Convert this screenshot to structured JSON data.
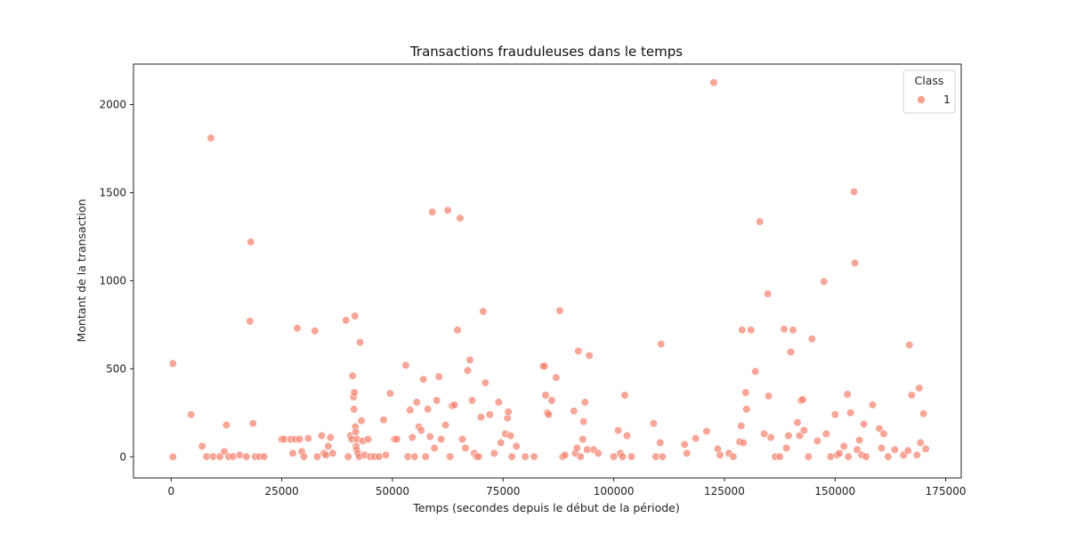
{
  "chart_data": {
    "type": "scatter",
    "title": "Transactions frauduleuses dans le temps",
    "xlabel": "Temps (secondes depuis le début de la période)",
    "ylabel": "Montant de la transaction",
    "xlim": [
      -8500,
      178500
    ],
    "ylim": [
      -120,
      2230
    ],
    "x_ticks": [
      0,
      25000,
      50000,
      75000,
      100000,
      125000,
      150000,
      175000
    ],
    "y_ticks": [
      0,
      500,
      1000,
      1500,
      2000
    ],
    "grid": false,
    "legend": {
      "title": "Class",
      "placement": "top-right",
      "entries": [
        "1"
      ]
    },
    "series": [
      {
        "name": "1",
        "color": "#f4836f",
        "points": [
          [
            400,
            530
          ],
          [
            400,
            0
          ],
          [
            4500,
            240
          ],
          [
            7000,
            60
          ],
          [
            8000,
            1
          ],
          [
            9000,
            1810
          ],
          [
            9500,
            1
          ],
          [
            11000,
            1
          ],
          [
            12000,
            30
          ],
          [
            12500,
            180
          ],
          [
            13000,
            1
          ],
          [
            14000,
            1
          ],
          [
            15500,
            10
          ],
          [
            17000,
            1
          ],
          [
            17800,
            770
          ],
          [
            18000,
            1220
          ],
          [
            18500,
            190
          ],
          [
            19000,
            1
          ],
          [
            20000,
            1
          ],
          [
            21000,
            1
          ],
          [
            25000,
            100
          ],
          [
            25500,
            100
          ],
          [
            27000,
            100
          ],
          [
            27500,
            20
          ],
          [
            28000,
            100
          ],
          [
            28500,
            730
          ],
          [
            29000,
            100
          ],
          [
            29500,
            30
          ],
          [
            30000,
            1
          ],
          [
            31000,
            105
          ],
          [
            32500,
            715
          ],
          [
            33000,
            1
          ],
          [
            34000,
            120
          ],
          [
            34500,
            20
          ],
          [
            35000,
            10
          ],
          [
            35500,
            60
          ],
          [
            36000,
            110
          ],
          [
            36500,
            20
          ],
          [
            39500,
            775
          ],
          [
            40000,
            1
          ],
          [
            40500,
            120
          ],
          [
            40800,
            100
          ],
          [
            41000,
            460
          ],
          [
            41200,
            340
          ],
          [
            41300,
            270
          ],
          [
            41400,
            365
          ],
          [
            41500,
            800
          ],
          [
            41600,
            170
          ],
          [
            41700,
            140
          ],
          [
            41800,
            60
          ],
          [
            41900,
            40
          ],
          [
            42000,
            100
          ],
          [
            42200,
            20
          ],
          [
            42500,
            1
          ],
          [
            42700,
            650
          ],
          [
            43000,
            205
          ],
          [
            43300,
            90
          ],
          [
            43700,
            10
          ],
          [
            44500,
            100
          ],
          [
            45000,
            1
          ],
          [
            46000,
            1
          ],
          [
            47000,
            1
          ],
          [
            48000,
            210
          ],
          [
            48500,
            10
          ],
          [
            49500,
            360
          ],
          [
            50500,
            100
          ],
          [
            51000,
            100
          ],
          [
            53000,
            520
          ],
          [
            53500,
            1
          ],
          [
            54000,
            265
          ],
          [
            54500,
            110
          ],
          [
            55000,
            1
          ],
          [
            55500,
            310
          ],
          [
            56000,
            170
          ],
          [
            56500,
            150
          ],
          [
            57000,
            440
          ],
          [
            57500,
            1
          ],
          [
            58000,
            270
          ],
          [
            58500,
            115
          ],
          [
            59000,
            1390
          ],
          [
            59500,
            50
          ],
          [
            60000,
            320
          ],
          [
            60500,
            455
          ],
          [
            61000,
            100
          ],
          [
            62000,
            180
          ],
          [
            62500,
            1400
          ],
          [
            63000,
            1
          ],
          [
            63500,
            290
          ],
          [
            64000,
            295
          ],
          [
            64700,
            720
          ],
          [
            65300,
            1355
          ],
          [
            65800,
            100
          ],
          [
            66500,
            50
          ],
          [
            67000,
            490
          ],
          [
            67500,
            550
          ],
          [
            68000,
            320
          ],
          [
            68500,
            20
          ],
          [
            69000,
            1
          ],
          [
            69500,
            1
          ],
          [
            70000,
            225
          ],
          [
            70500,
            825
          ],
          [
            71000,
            420
          ],
          [
            72000,
            240
          ],
          [
            73000,
            20
          ],
          [
            74000,
            310
          ],
          [
            74500,
            80
          ],
          [
            75500,
            130
          ],
          [
            76000,
            220
          ],
          [
            76200,
            255
          ],
          [
            76700,
            120
          ],
          [
            77000,
            1
          ],
          [
            78000,
            60
          ],
          [
            80000,
            1
          ],
          [
            82000,
            1
          ],
          [
            84000,
            515
          ],
          [
            84300,
            515
          ],
          [
            84600,
            350
          ],
          [
            85000,
            250
          ],
          [
            85300,
            240
          ],
          [
            86000,
            320
          ],
          [
            87000,
            450
          ],
          [
            87800,
            830
          ],
          [
            88500,
            1
          ],
          [
            89000,
            10
          ],
          [
            91000,
            260
          ],
          [
            91300,
            20
          ],
          [
            91700,
            50
          ],
          [
            92000,
            600
          ],
          [
            92500,
            1
          ],
          [
            93000,
            100
          ],
          [
            93200,
            200
          ],
          [
            93500,
            310
          ],
          [
            94000,
            40
          ],
          [
            94500,
            575
          ],
          [
            95500,
            40
          ],
          [
            96500,
            20
          ],
          [
            100000,
            1
          ],
          [
            101000,
            150
          ],
          [
            101500,
            20
          ],
          [
            102000,
            1
          ],
          [
            102500,
            350
          ],
          [
            103000,
            120
          ],
          [
            104000,
            1
          ],
          [
            109000,
            190
          ],
          [
            109500,
            1
          ],
          [
            110500,
            80
          ],
          [
            110700,
            640
          ],
          [
            111000,
            1
          ],
          [
            116000,
            70
          ],
          [
            116500,
            20
          ],
          [
            118500,
            105
          ],
          [
            121000,
            145
          ],
          [
            122600,
            2125
          ],
          [
            123500,
            45
          ],
          [
            124000,
            10
          ],
          [
            126000,
            20
          ],
          [
            127000,
            1
          ],
          [
            128500,
            85
          ],
          [
            128800,
            175
          ],
          [
            129000,
            720
          ],
          [
            129300,
            80
          ],
          [
            129800,
            365
          ],
          [
            130000,
            270
          ],
          [
            131000,
            720
          ],
          [
            132000,
            485
          ],
          [
            133000,
            1335
          ],
          [
            134000,
            130
          ],
          [
            134800,
            925
          ],
          [
            135000,
            345
          ],
          [
            135500,
            110
          ],
          [
            136500,
            1
          ],
          [
            137500,
            1
          ],
          [
            138500,
            725
          ],
          [
            139000,
            50
          ],
          [
            139500,
            120
          ],
          [
            140000,
            595
          ],
          [
            140500,
            720
          ],
          [
            141500,
            195
          ],
          [
            142000,
            120
          ],
          [
            142300,
            320
          ],
          [
            142700,
            325
          ],
          [
            143000,
            150
          ],
          [
            144000,
            1
          ],
          [
            144800,
            670
          ],
          [
            146000,
            90
          ],
          [
            147500,
            995
          ],
          [
            148000,
            130
          ],
          [
            149000,
            1
          ],
          [
            150000,
            240
          ],
          [
            150500,
            10
          ],
          [
            151000,
            20
          ],
          [
            152000,
            60
          ],
          [
            152800,
            355
          ],
          [
            153000,
            1
          ],
          [
            153500,
            250
          ],
          [
            154300,
            1505
          ],
          [
            154500,
            1100
          ],
          [
            155000,
            40
          ],
          [
            155500,
            95
          ],
          [
            156000,
            10
          ],
          [
            156500,
            185
          ],
          [
            157000,
            1
          ],
          [
            158500,
            295
          ],
          [
            160000,
            160
          ],
          [
            160500,
            50
          ],
          [
            161000,
            130
          ],
          [
            162000,
            1
          ],
          [
            163500,
            40
          ],
          [
            165500,
            10
          ],
          [
            166500,
            35
          ],
          [
            166800,
            635
          ],
          [
            167300,
            350
          ],
          [
            168500,
            10
          ],
          [
            169000,
            390
          ],
          [
            169300,
            80
          ],
          [
            170000,
            245
          ],
          [
            170500,
            45
          ]
        ]
      }
    ]
  }
}
